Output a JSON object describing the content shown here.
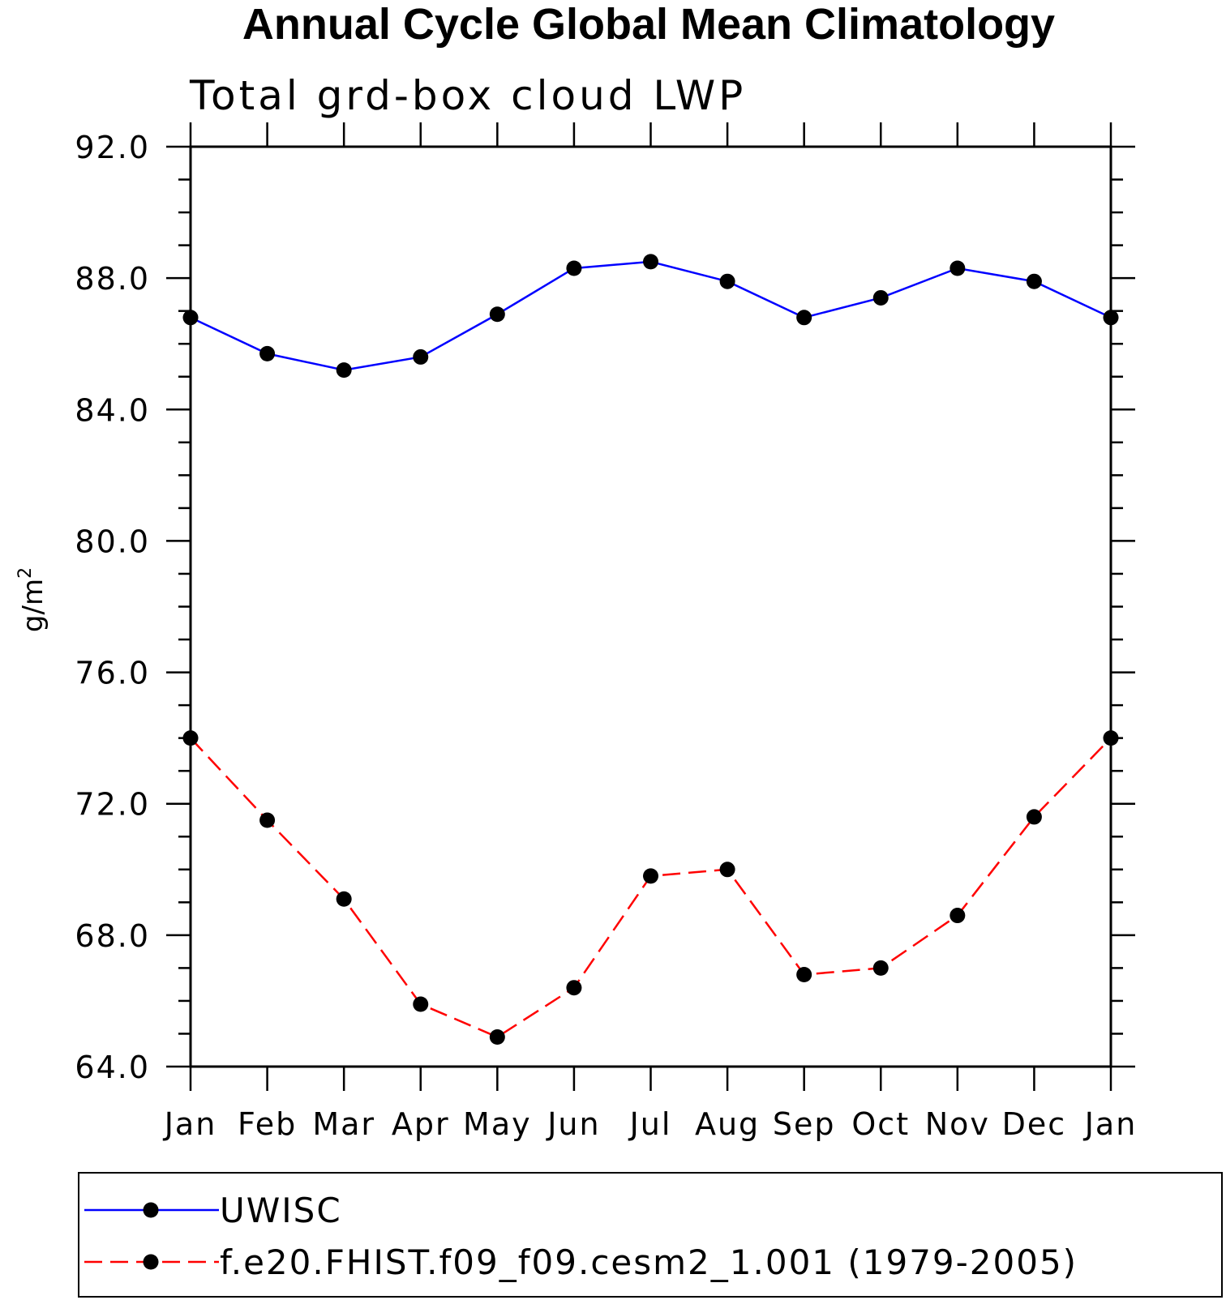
{
  "chart_data": {
    "type": "line",
    "title": "Annual Cycle Global Mean Climatology",
    "subtitle": "Total grd-box cloud LWP",
    "ylabel": "g/m",
    "ylabel_superscript": "2",
    "xlabel": "",
    "categories": [
      "Jan",
      "Feb",
      "Mar",
      "Apr",
      "May",
      "Jun",
      "Jul",
      "Aug",
      "Sep",
      "Oct",
      "Nov",
      "Dec",
      "Jan"
    ],
    "ylim": [
      64.0,
      92.0
    ],
    "yticks": [
      "64.0",
      "68.0",
      "72.0",
      "76.0",
      "80.0",
      "84.0",
      "88.0",
      "92.0"
    ],
    "grid": false,
    "legend_position": "bottom",
    "series": [
      {
        "name": "UWISC",
        "color": "#0000ff",
        "dash": "solid",
        "marker": "circle",
        "values": [
          86.8,
          85.7,
          85.2,
          85.6,
          86.9,
          88.3,
          88.5,
          87.9,
          86.8,
          87.4,
          88.3,
          87.9,
          86.8
        ]
      },
      {
        "name": "f.e20.FHIST.f09_f09.cesm2_1.001 (1979-2005)",
        "color": "#ff0000",
        "dash": "dashed",
        "marker": "circle",
        "values": [
          74.0,
          71.5,
          69.1,
          65.9,
          64.9,
          66.4,
          69.8,
          70.0,
          66.8,
          67.0,
          68.6,
          71.6,
          74.0
        ]
      }
    ]
  }
}
